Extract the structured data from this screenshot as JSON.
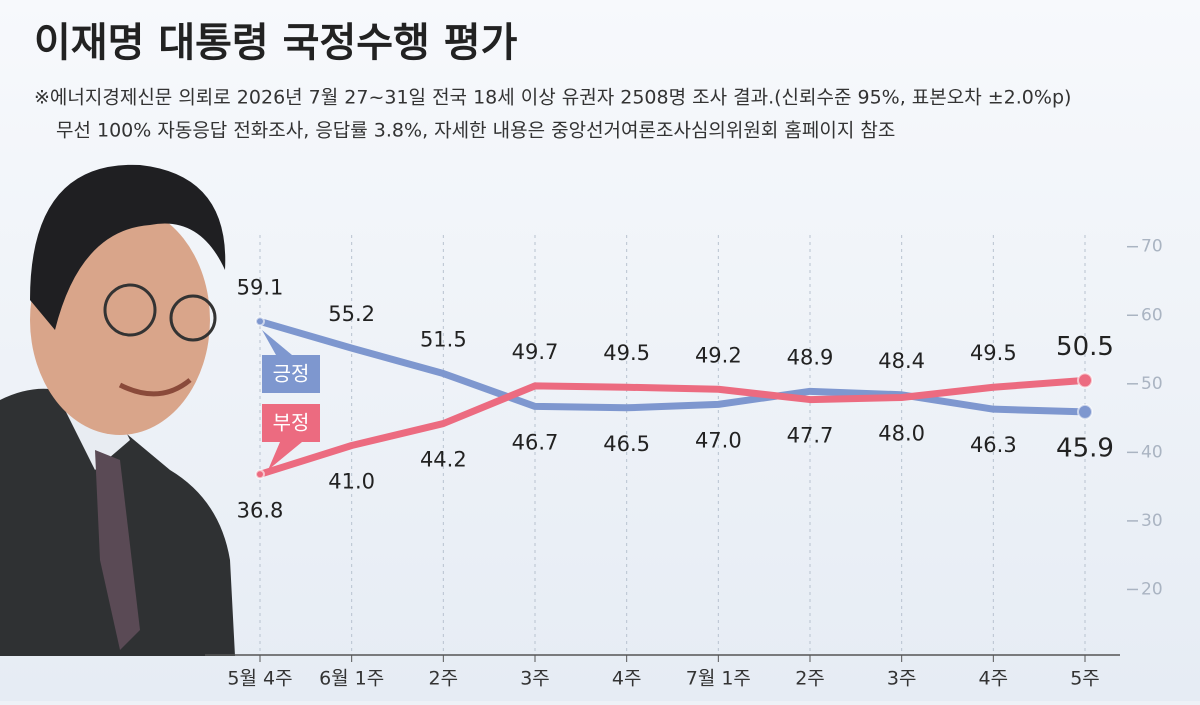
{
  "chart_data": {
    "type": "line",
    "title": "이재명 대통령 국정수행 평가",
    "notes": [
      "※에너지경제신문 의뢰로 2026년 7월 27~31일 전국 18세 이상 유권자 2508명 조사 결과.(신뢰수준 95%, 표본오차 ±2.0%p)",
      "무선 100% 자동응답 전화조사, 응답률 3.8%, 자세한 내용은 중앙선거여론조사심의위원회 홈페이지 참조"
    ],
    "categories": [
      "5월 4주",
      "6월 1주",
      "2주",
      "3주",
      "4주",
      "7월 1주",
      "2주",
      "3주",
      "4주",
      "5주"
    ],
    "series": [
      {
        "name": "긍정",
        "color": "#7e97cf",
        "values": [
          59.1,
          55.2,
          51.5,
          46.7,
          46.5,
          47.0,
          48.9,
          48.4,
          46.3,
          45.9
        ],
        "value_labels": [
          "59.1",
          "55.2",
          "51.5",
          "46.7",
          "46.5",
          "47.0",
          "48.9",
          "48.4",
          "46.3",
          "45.9"
        ]
      },
      {
        "name": "부정",
        "color": "#ec6b80",
        "values": [
          36.8,
          41.0,
          44.2,
          49.7,
          49.5,
          49.2,
          47.7,
          48.0,
          49.5,
          50.5
        ],
        "value_labels": [
          "36.8",
          "41.0",
          "44.2",
          "49.7",
          "49.5",
          "49.2",
          "47.7",
          "48.0",
          "49.5",
          "50.5"
        ]
      }
    ],
    "ylim": [
      10,
      72
    ],
    "yticks": [
      20,
      30,
      40,
      50,
      60,
      70
    ]
  }
}
